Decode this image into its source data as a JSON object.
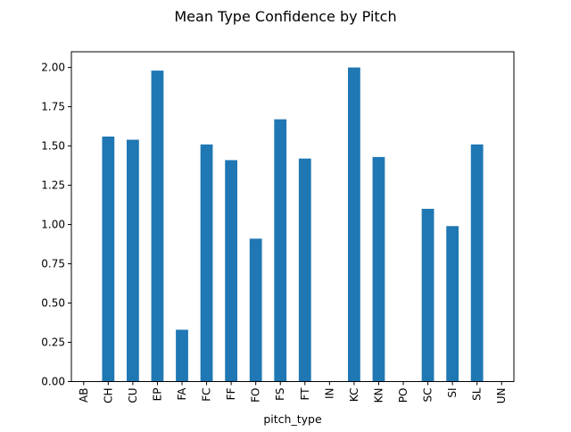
{
  "chart_data": {
    "type": "bar",
    "title": "Mean Type Confidence by Pitch",
    "xlabel": "pitch_type",
    "ylabel": "",
    "categories": [
      "AB",
      "CH",
      "CU",
      "EP",
      "FA",
      "FC",
      "FF",
      "FO",
      "FS",
      "FT",
      "IN",
      "KC",
      "KN",
      "PO",
      "SC",
      "SI",
      "SL",
      "UN"
    ],
    "values": [
      0.0,
      1.56,
      1.54,
      1.98,
      0.33,
      1.51,
      1.41,
      0.91,
      1.67,
      1.42,
      0.0,
      2.0,
      1.43,
      0.0,
      1.1,
      0.99,
      1.51,
      0.0
    ],
    "ylim": [
      0,
      2.1
    ],
    "yticks": [
      0.0,
      0.25,
      0.5,
      0.75,
      1.0,
      1.25,
      1.5,
      1.75,
      2.0
    ],
    "ytick_labels": [
      "0.00",
      "0.25",
      "0.50",
      "0.75",
      "1.00",
      "1.25",
      "1.50",
      "1.75",
      "2.00"
    ],
    "grid": false,
    "legend": "none",
    "bar_color": "#1f77b4"
  }
}
